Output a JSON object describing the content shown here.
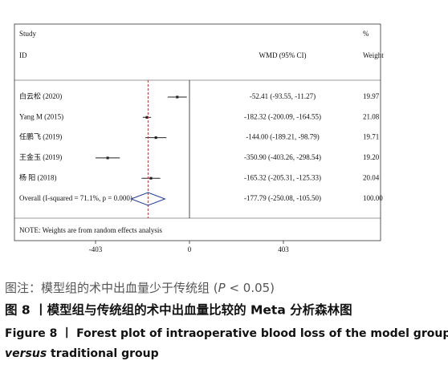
{
  "chart_data": {
    "type": "forest",
    "header": {
      "study": "Study",
      "id": "ID",
      "effect": "WMD (95% CI)",
      "pct": "%",
      "weight": "Weight"
    },
    "studies": [
      {
        "name": "白云松 (2020)",
        "estimate": -52.41,
        "lower": -93.55,
        "upper": -11.27,
        "label": "-52.41 (-93.55, -11.27)",
        "weight": 19.97,
        "weight_label": "19.97"
      },
      {
        "name": "Yang M (2015)",
        "estimate": -182.32,
        "lower": -200.09,
        "upper": -164.55,
        "label": "-182.32 (-200.09, -164.55)",
        "weight": 21.08,
        "weight_label": "21.08"
      },
      {
        "name": "任鹏飞 (2019)",
        "estimate": -144.0,
        "lower": -189.21,
        "upper": -98.79,
        "label": "-144.00 (-189.21, -98.79)",
        "weight": 19.71,
        "weight_label": "19.71"
      },
      {
        "name": "王金玉 (2019)",
        "estimate": -350.9,
        "lower": -403.26,
        "upper": -298.54,
        "label": "-350.90 (-403.26, -298.54)",
        "weight": 19.2,
        "weight_label": "19.20"
      },
      {
        "name": "杨  阳 (2018)",
        "estimate": -165.32,
        "lower": -205.31,
        "upper": -125.33,
        "label": "-165.32 (-205.31, -125.33)",
        "weight": 20.04,
        "weight_label": "20.04"
      }
    ],
    "overall": {
      "name": "Overall  (I-squared = 71.1%, p = 0.000)",
      "estimate": -177.79,
      "lower": -250.08,
      "upper": -105.5,
      "label": "-177.79 (-250.08, -105.50)",
      "weight": 100,
      "weight_label": "100.00"
    },
    "note": "NOTE: Weights are from random effects analysis",
    "xlim": [
      -403,
      403
    ],
    "xticks": [
      -403,
      0,
      403
    ],
    "colors": {
      "point": "#222222",
      "overall": "#1f3b9a",
      "overall_line": "#b03a3a"
    },
    "caption": {
      "note_parts": [
        "图注：模型组的术中出血量少于传统组 (",
        "P",
        " < 0.05)"
      ],
      "title_cn": "图 8 丨模型组与传统组的术中出血量比较的 Meta 分析森林图",
      "title_en_1": "Figure 8 丨 Forest plot of intraoperative blood loss of the model group",
      "title_en_2_italic": "versus",
      "title_en_2": " traditional group"
    }
  }
}
